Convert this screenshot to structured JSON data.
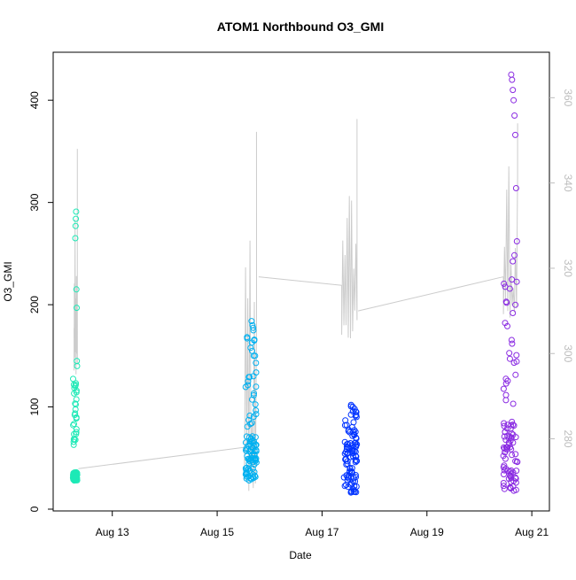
{
  "chart_data": {
    "type": "scatter",
    "title": "ATOM1 Northbound O3_GMI",
    "xlabel": "Date",
    "ylabel": "O3_GMI",
    "x_ticks": [
      "Aug 13",
      "Aug 15",
      "Aug 17",
      "Aug 19",
      "Aug 21"
    ],
    "y_ticks": [
      "0",
      "100",
      "200",
      "300",
      "400"
    ],
    "y2_ticks": [
      "280",
      "300",
      "320",
      "340",
      "360"
    ],
    "xlim": [
      "2016-08-12 01:00",
      "2016-08-21 04:00"
    ],
    "ylim": [
      0,
      440
    ],
    "y2lim": [
      263.5,
      369
    ],
    "grid": false,
    "legend": "none",
    "colors": {
      "cluster1": "#1de9b6",
      "cluster2": "#00b0f0",
      "cluster3": "#0033ff",
      "cluster4": "#8a2be2",
      "secondary_line": "#cccccc",
      "right_axis": "#bdbdbd"
    },
    "series": [
      {
        "flight_date": "2016-08-12",
        "t_start": "06:00",
        "t_end": "08:00",
        "low_band": [
          28,
          36
        ],
        "mid_band": [
          60,
          128
        ],
        "spikes": [
          265,
          277,
          284,
          291,
          215,
          197,
          145,
          140
        ]
      },
      {
        "flight_date": "2016-08-15",
        "t_start": "13:00",
        "t_end": "18:00",
        "low_band": [
          28,
          72
        ],
        "mid_band": [
          80,
          185
        ],
        "spikes": [
          184,
          180,
          175,
          165,
          150,
          143
        ]
      },
      {
        "flight_date": "2016-08-17",
        "t_start": "10:00",
        "t_end": "16:00",
        "low_band": [
          16,
          65
        ],
        "mid_band": [
          60,
          102
        ],
        "spikes": [
          102,
          100,
          98,
          95
        ]
      },
      {
        "flight_date": "2016-08-20",
        "t_start": "11:00",
        "t_end": "17:30",
        "low_band": [
          18,
          90
        ],
        "mid_band": [
          100,
          255
        ],
        "spikes": [
          425,
          420,
          410,
          400,
          385,
          366,
          314,
          262
        ]
      }
    ],
    "secondary_line": {
      "axis": "right",
      "points": [
        {
          "x": "2016-08-12 06:30",
          "y": 306
        },
        {
          "x": "2016-08-12 08:00",
          "y": 348
        },
        {
          "x": "2016-08-12 08:30",
          "y": 273
        },
        {
          "x": "2016-08-15 12:30",
          "y": 278
        },
        {
          "x": "2016-08-15 18:00",
          "y": 352
        },
        {
          "x": "2016-08-15 19:00",
          "y": 318
        },
        {
          "x": "2016-08-17 09:00",
          "y": 316
        },
        {
          "x": "2016-08-17 16:00",
          "y": 355
        },
        {
          "x": "2016-08-17 16:30",
          "y": 310
        },
        {
          "x": "2016-08-20 11:00",
          "y": 318
        },
        {
          "x": "2016-08-20 17:30",
          "y": 354
        }
      ]
    }
  }
}
